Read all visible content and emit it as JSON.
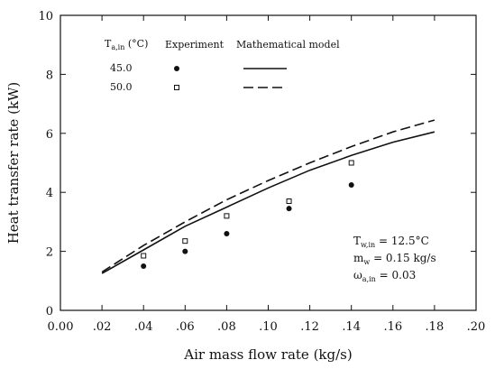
{
  "chart_data": {
    "type": "line",
    "xlabel": "Air mass flow rate (kg/s)",
    "ylabel": "Heat transfer rate (kW)",
    "xlim": [
      0.0,
      0.2
    ],
    "ylim": [
      0,
      10
    ],
    "x_ticks": [
      0.0,
      0.02,
      0.04,
      0.06,
      0.08,
      0.1,
      0.12,
      0.14,
      0.16,
      0.18,
      0.2
    ],
    "x_tick_labels": [
      "0.00",
      ".02",
      ".04",
      ".06",
      ".08",
      ".10",
      ".12",
      ".14",
      ".16",
      ".18",
      ".20"
    ],
    "y_ticks": [
      0,
      2,
      4,
      6,
      8,
      10
    ],
    "y_tick_labels": [
      "0",
      "2",
      "4",
      "6",
      "8",
      "10"
    ],
    "grid": false,
    "legend": {
      "placement": "top-left",
      "group_header": "T",
      "group_header_sub": "a,in",
      "group_header_unit": " (°C)",
      "experiment_header": "Experiment",
      "model_header": "Mathematical model",
      "rows": [
        {
          "label": "45.0",
          "marker": "filled-circle",
          "line": "solid"
        },
        {
          "label": "50.0",
          "marker": "open-square",
          "line": "dashed"
        }
      ]
    },
    "conditions": [
      {
        "symbol": "T",
        "sub": "w,in",
        "rest": " = 12.5°C"
      },
      {
        "symbol": "m",
        "sub": "w",
        "rest": " = 0.15 kg/s"
      },
      {
        "symbol": "ω",
        "sub": "a,in",
        "rest": " = 0.03"
      }
    ],
    "series": [
      {
        "label_ref": "45.0",
        "kind": "model",
        "style": "solid",
        "x": [
          0.02,
          0.04,
          0.06,
          0.08,
          0.1,
          0.12,
          0.14,
          0.16,
          0.18
        ],
        "y": [
          1.25,
          2.05,
          2.85,
          3.5,
          4.15,
          4.75,
          5.25,
          5.7,
          6.05
        ]
      },
      {
        "label_ref": "50.0",
        "kind": "model",
        "style": "dashed",
        "x": [
          0.02,
          0.04,
          0.06,
          0.08,
          0.1,
          0.12,
          0.14,
          0.16,
          0.18
        ],
        "y": [
          1.3,
          2.2,
          3.0,
          3.75,
          4.4,
          5.0,
          5.55,
          6.05,
          6.45
        ]
      },
      {
        "label_ref": "45.0",
        "kind": "experiment",
        "marker": "filled-circle",
        "x": [
          0.04,
          0.06,
          0.08,
          0.11,
          0.14
        ],
        "y": [
          1.5,
          2.0,
          2.6,
          3.45,
          4.25
        ]
      },
      {
        "label_ref": "50.0",
        "kind": "experiment",
        "marker": "open-square",
        "x": [
          0.04,
          0.06,
          0.08,
          0.11,
          0.14
        ],
        "y": [
          1.85,
          2.35,
          3.2,
          3.7,
          5.0
        ]
      }
    ]
  }
}
